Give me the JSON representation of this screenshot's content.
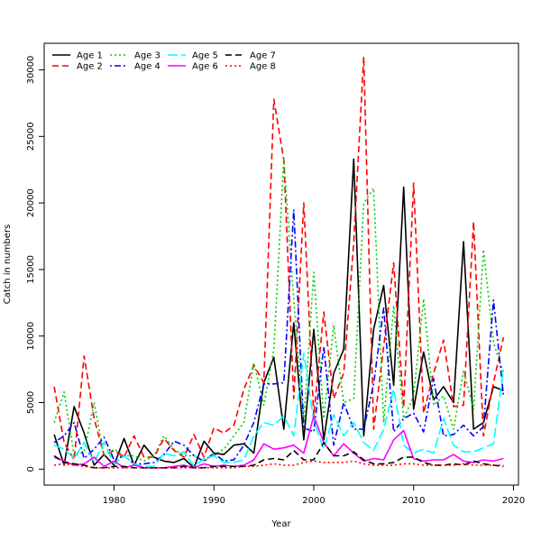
{
  "chart_data": {
    "type": "line",
    "title": "",
    "xlabel": "Year",
    "ylabel": "Catch in numbers",
    "xlim": [
      1973,
      2020.5
    ],
    "ylim": [
      -1200,
      32000
    ],
    "xticks": [
      1980,
      1990,
      2000,
      2010,
      2020
    ],
    "yticks": [
      0,
      5000,
      10000,
      15000,
      20000,
      25000,
      30000
    ],
    "legend_position": "top-left",
    "x": [
      1974,
      1975,
      1976,
      1977,
      1978,
      1979,
      1980,
      1981,
      1982,
      1983,
      1984,
      1985,
      1986,
      1987,
      1988,
      1989,
      1990,
      1991,
      1992,
      1993,
      1994,
      1995,
      1996,
      1997,
      1998,
      1999,
      2000,
      2001,
      2002,
      2003,
      2004,
      2005,
      2006,
      2007,
      2008,
      2009,
      2010,
      2011,
      2012,
      2013,
      2014,
      2015,
      2016,
      2017,
      2018,
      2019
    ],
    "series": [
      {
        "name": "Age 1",
        "color": "#000000",
        "dash": "solid",
        "values": [
          2600,
          300,
          4700,
          2700,
          300,
          1100,
          300,
          2300,
          300,
          1800,
          900,
          600,
          500,
          800,
          100,
          2100,
          1200,
          1100,
          1800,
          1900,
          1200,
          6500,
          8400,
          3000,
          11000,
          2200,
          10500,
          2200,
          7200,
          9000,
          23300,
          2500,
          10500,
          13800,
          6300,
          21200,
          4500,
          8800,
          5200,
          6200,
          5000,
          17100,
          3000,
          3500,
          6200,
          5900
        ]
      },
      {
        "name": "Age 2",
        "color": "#ff0000",
        "dash": "dashed",
        "values": [
          6200,
          2000,
          700,
          8500,
          3800,
          1000,
          1400,
          900,
          2500,
          900,
          900,
          2300,
          1400,
          900,
          2600,
          900,
          3100,
          2700,
          3300,
          6000,
          7800,
          6500,
          27800,
          23200,
          5300,
          20000,
          4000,
          11800,
          5300,
          7200,
          17000,
          31000,
          3000,
          9200,
          15500,
          4600,
          21500,
          4200,
          7200,
          9700,
          4700,
          4800,
          18600,
          2500,
          6500,
          9900
        ]
      },
      {
        "name": "Age 3",
        "color": "#00cc00",
        "dash": "dotted",
        "values": [
          3500,
          5800,
          1000,
          1300,
          5000,
          1000,
          1500,
          1000,
          1000,
          600,
          1000,
          2500,
          1500,
          1000,
          1000,
          600,
          1100,
          1500,
          2500,
          3500,
          8000,
          4800,
          9000,
          23300,
          12700,
          3500,
          14800,
          3800,
          10800,
          5000,
          5300,
          20000,
          21100,
          3500,
          12300,
          3800,
          5500,
          12800,
          4800,
          5500,
          3000,
          7400,
          4500,
          16500,
          9500,
          7200
        ]
      },
      {
        "name": "Age 4",
        "color": "#0000ff",
        "dash": "dotdash",
        "values": [
          2000,
          2500,
          3500,
          800,
          1500,
          2400,
          700,
          1000,
          400,
          400,
          500,
          1100,
          2100,
          1800,
          1000,
          600,
          1200,
          600,
          700,
          1800,
          3500,
          6400,
          6400,
          6500,
          19500,
          3100,
          2800,
          9200,
          1800,
          5000,
          3000,
          3000,
          6400,
          12100,
          2800,
          3800,
          4200,
          2800,
          6800,
          2500,
          2600,
          3300,
          2500,
          3200,
          12700,
          5500
        ]
      },
      {
        "name": "Age 5",
        "color": "#00ffff",
        "dash": "longdash",
        "values": [
          1800,
          1500,
          800,
          2000,
          500,
          2000,
          400,
          1000,
          400,
          200,
          200,
          1200,
          1000,
          1300,
          200,
          800,
          1000,
          500,
          500,
          700,
          2500,
          3500,
          3300,
          4000,
          2500,
          8700,
          3600,
          1500,
          4100,
          2500,
          3500,
          2000,
          1400,
          3000,
          6000,
          1800,
          1200,
          1500,
          1200,
          3800,
          1800,
          1300,
          1300,
          1600,
          1900,
          7500
        ]
      },
      {
        "name": "Age 6",
        "color": "#ff00ff",
        "dash": "solid",
        "values": [
          900,
          600,
          300,
          400,
          900,
          200,
          600,
          100,
          300,
          100,
          100,
          100,
          200,
          300,
          100,
          400,
          200,
          300,
          200,
          300,
          700,
          1900,
          1500,
          1600,
          1800,
          1200,
          4000,
          2000,
          1000,
          1900,
          1200,
          600,
          800,
          700,
          2200,
          2900,
          800,
          600,
          700,
          700,
          1100,
          600,
          500,
          700,
          600,
          800
        ]
      },
      {
        "name": "Age 7",
        "color": "#000000",
        "dash": "dashed",
        "values": [
          1000,
          500,
          400,
          300,
          100,
          100,
          200,
          200,
          100,
          100,
          100,
          100,
          100,
          200,
          100,
          100,
          200,
          200,
          200,
          200,
          300,
          700,
          800,
          700,
          1400,
          700,
          700,
          2000,
          1000,
          1000,
          1300,
          700,
          400,
          400,
          500,
          900,
          900,
          500,
          300,
          300,
          400,
          300,
          600,
          400,
          300,
          200
        ]
      },
      {
        "name": "Age 8",
        "color": "#ff0000",
        "dash": "dotted",
        "values": [
          300,
          400,
          300,
          200,
          100,
          100,
          100,
          100,
          100,
          100,
          100,
          100,
          100,
          100,
          100,
          100,
          100,
          100,
          100,
          200,
          200,
          300,
          400,
          300,
          300,
          500,
          600,
          500,
          500,
          500,
          600,
          400,
          300,
          300,
          300,
          400,
          400,
          300,
          300,
          300,
          300,
          400,
          300,
          300,
          300,
          300
        ]
      }
    ]
  }
}
